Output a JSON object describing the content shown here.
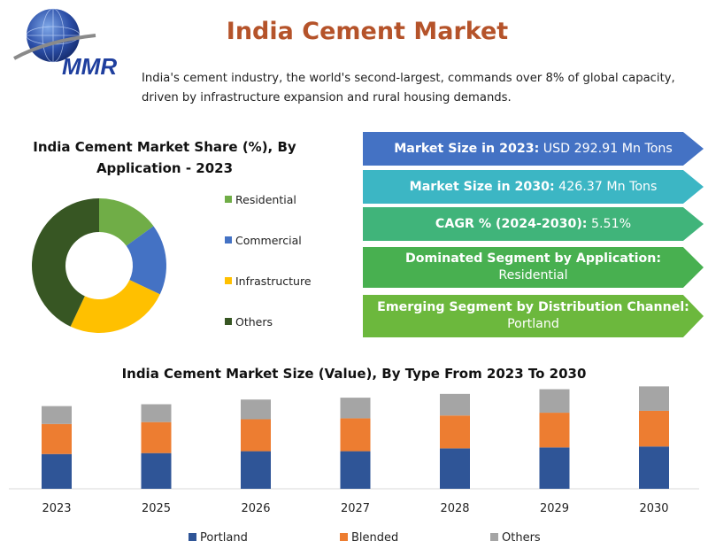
{
  "logo": {
    "text": "MMR"
  },
  "header": {
    "title": "India Cement Market",
    "intro": "India's cement industry, the world's second-largest, commands over 8% of global capacity, driven by infrastructure expansion and rural housing demands."
  },
  "colors": {
    "title": "#b5532a",
    "residential": "#70ad47",
    "commercial": "#4472c4",
    "infrastructure": "#ffc000",
    "others_pie": "#375623",
    "portland": "#2f5597",
    "blended": "#ed7d31",
    "others_bar": "#a5a5a5",
    "arrow1": "#4472c4",
    "arrow2": "#3cb6c4",
    "arrow3": "#40b47a",
    "arrow4": "#48b050",
    "arrow5": "#6cb83d"
  },
  "stats": [
    {
      "key": "Market Size in 2023:",
      "value": "USD 292.91 Mn Tons"
    },
    {
      "key": "Market Size in 2030:",
      "value": "426.37 Mn Tons"
    },
    {
      "key": "CAGR % (2024-2030):",
      "value": "5.51%"
    },
    {
      "key": "Dominated Segment by Application:",
      "value": "Residential"
    },
    {
      "key": "Emerging Segment by Distribution Channel:",
      "value": "Portland"
    }
  ],
  "chart_data": [
    {
      "type": "pie",
      "title_line1": "India Cement Market Share (%), By",
      "title_line2": "Application - 2023",
      "legend_placement": "right",
      "slices": [
        {
          "name": "Residential",
          "value": 15
        },
        {
          "name": "Commercial",
          "value": 17
        },
        {
          "name": "Infrastructure",
          "value": 25
        },
        {
          "name": "Others",
          "value": 43
        }
      ]
    },
    {
      "type": "bar",
      "stacked": true,
      "title": "India Cement Market Size (Value), By Type From 2023 To 2030",
      "categories": [
        "2023",
        "2025",
        "2026",
        "2027",
        "2028",
        "2029",
        "2030"
      ],
      "series": [
        {
          "name": "Portland",
          "values": [
            37,
            38,
            40,
            40,
            43,
            44,
            45
          ]
        },
        {
          "name": "Blended",
          "values": [
            32,
            33,
            34,
            35,
            35,
            37,
            38
          ]
        },
        {
          "name": "Others",
          "values": [
            19,
            19,
            21,
            22,
            23,
            25,
            26
          ]
        }
      ],
      "ylim": [
        0,
        115
      ],
      "grid": false,
      "legend_placement": "bottom"
    }
  ]
}
